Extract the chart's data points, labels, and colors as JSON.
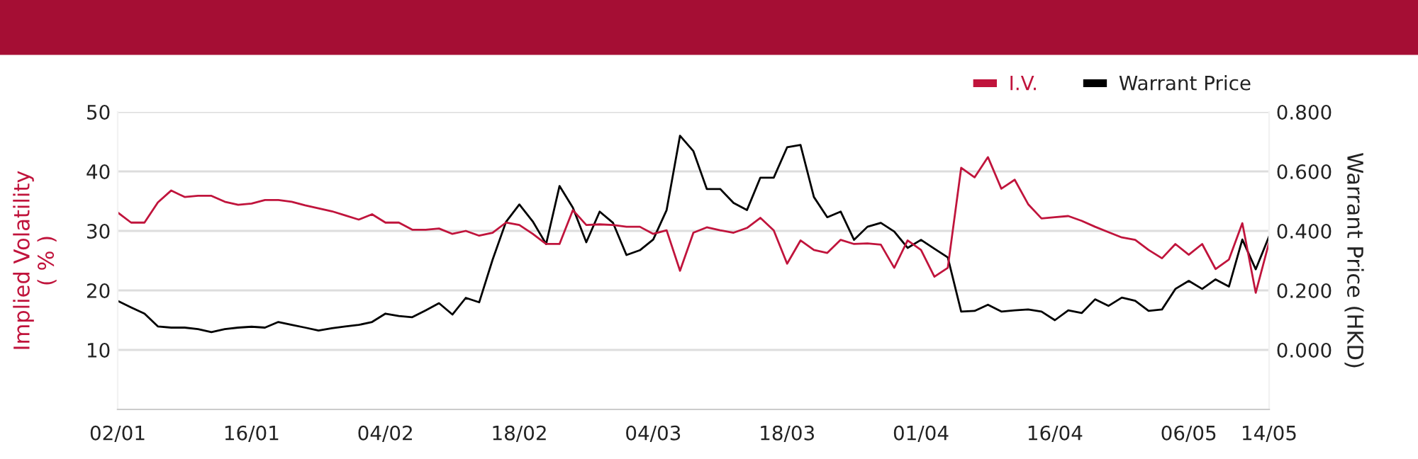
{
  "chart_data": {
    "type": "line",
    "categories": [
      "02/01",
      null,
      null,
      null,
      null,
      null,
      null,
      null,
      null,
      null,
      "16/01",
      null,
      null,
      null,
      null,
      null,
      null,
      null,
      null,
      null,
      "04/02",
      null,
      null,
      null,
      null,
      null,
      null,
      null,
      null,
      null,
      "18/02",
      null,
      null,
      null,
      null,
      null,
      null,
      null,
      null,
      null,
      "04/03",
      null,
      null,
      null,
      null,
      null,
      null,
      null,
      null,
      null,
      "18/03",
      null,
      null,
      null,
      null,
      null,
      null,
      null,
      null,
      null,
      "01/04",
      null,
      null,
      null,
      null,
      null,
      null,
      null,
      null,
      null,
      "16/04",
      null,
      null,
      null,
      null,
      null,
      null,
      null,
      null,
      null,
      "06/05",
      null,
      null,
      null,
      null,
      null,
      "14/05"
    ],
    "series": [
      {
        "name": "I.V.",
        "color": "#c0143c",
        "values": [
          33.1,
          31.4,
          31.4,
          34.8,
          36.8,
          35.7,
          35.9,
          35.9,
          34.9,
          34.4,
          34.6,
          35.2,
          35.2,
          34.9,
          34.3,
          33.8,
          33.3,
          32.6,
          31.9,
          32.8,
          31.4,
          31.4,
          30.2,
          30.2,
          30.4,
          29.5,
          30.0,
          29.2,
          29.7,
          31.4,
          31.0,
          29.5,
          27.8,
          27.8,
          33.5,
          31.0,
          31.1,
          31.0,
          30.7,
          30.7,
          29.5,
          30.1,
          23.3,
          29.7,
          30.6,
          30.1,
          29.7,
          30.5,
          32.2,
          30.1,
          24.5,
          28.4,
          26.8,
          26.3,
          28.5,
          27.8,
          27.9,
          27.7,
          23.8,
          28.4,
          26.8,
          22.3,
          23.8,
          40.6,
          39.0,
          42.4,
          37.1,
          38.6,
          34.5,
          32.1,
          32.3,
          32.5,
          31.7,
          30.7,
          29.8,
          28.9,
          28.5,
          26.8,
          25.4,
          27.8,
          26.0,
          27.8,
          23.6,
          25.2,
          31.3,
          19.6,
          28.1
        ]
      },
      {
        "name": "Warrant Price",
        "color": "#000000",
        "axis": "y2",
        "values": [
          0.165,
          0.143,
          0.122,
          0.079,
          0.075,
          0.075,
          0.07,
          0.06,
          0.07,
          0.075,
          0.078,
          0.075,
          0.094,
          0.084,
          0.075,
          0.065,
          0.073,
          0.079,
          0.084,
          0.094,
          0.122,
          0.114,
          0.11,
          0.133,
          0.157,
          0.119,
          0.175,
          0.16,
          0.303,
          0.43,
          0.489,
          0.432,
          0.356,
          0.551,
          0.478,
          0.362,
          0.465,
          0.427,
          0.319,
          0.335,
          0.371,
          0.47,
          0.72,
          0.668,
          0.541,
          0.541,
          0.494,
          0.47,
          0.579,
          0.579,
          0.681,
          0.689,
          0.514,
          0.446,
          0.465,
          0.37,
          0.414,
          0.427,
          0.398,
          0.343,
          0.37,
          0.34,
          0.311,
          0.129,
          0.131,
          0.152,
          0.129,
          0.133,
          0.136,
          0.129,
          0.1,
          0.133,
          0.124,
          0.17,
          0.148,
          0.176,
          0.165,
          0.131,
          0.136,
          0.205,
          0.232,
          0.205,
          0.237,
          0.213,
          0.371,
          0.271,
          0.382
        ]
      }
    ],
    "ylabel": "Implied Volatility\n( % )",
    "y2label": "Warrant Price (HKD)",
    "ylim": [
      0,
      50
    ],
    "yticks": [
      10,
      20,
      30,
      40,
      50
    ],
    "y2lim": [
      -0.2,
      0.8
    ],
    "y2ticks": [
      {
        "value": 0,
        "label": "0.000"
      },
      {
        "value": 0.2,
        "label": "0.200"
      },
      {
        "value": 0.4,
        "label": "0.400"
      },
      {
        "value": 0.6,
        "label": "0.600"
      },
      {
        "value": 0.8,
        "label": "0.800"
      }
    ],
    "grid": "y",
    "legend": "top right",
    "marker": "none",
    "line_style": "solid"
  }
}
